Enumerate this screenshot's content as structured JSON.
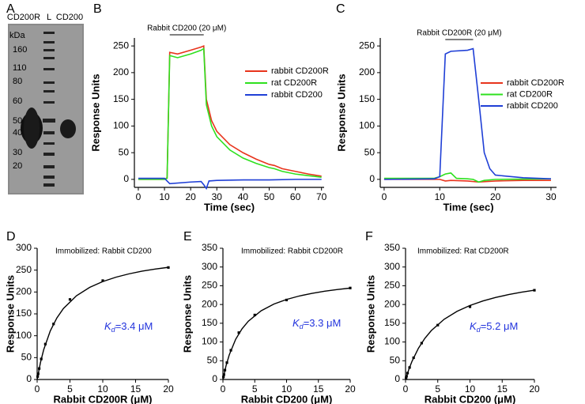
{
  "panels": [
    "A",
    "B",
    "C",
    "D",
    "E",
    "F"
  ],
  "gel": {
    "lanes": [
      "CD200R",
      "L",
      "CD200"
    ],
    "unit": "kDa",
    "markers": [
      160,
      110,
      80,
      60,
      50,
      40,
      30,
      20
    ]
  },
  "chart_data": [
    {
      "type": "line",
      "xlabel": "Time (sec)",
      "ylabel": "Response Units",
      "annotation": {
        "text": "Rabbit CD200 (20 μM)",
        "xrange": [
          12,
          25
        ]
      },
      "xlim": [
        -1.5,
        71
      ],
      "ylim": [
        -15,
        265
      ],
      "xticks": [
        0,
        10,
        20,
        30,
        40,
        50,
        60,
        70
      ],
      "yticks": [
        0,
        50,
        100,
        150,
        200,
        250
      ],
      "legend": "right",
      "series": [
        {
          "name": "rabbit CD200R",
          "color": "#e8341c",
          "x": [
            0,
            10,
            11,
            12,
            15,
            20,
            24,
            25,
            26,
            28,
            30,
            35,
            40,
            45,
            50,
            52,
            55,
            60,
            65,
            70
          ],
          "values": [
            0,
            0,
            3,
            238,
            235,
            242,
            248,
            250,
            150,
            110,
            90,
            65,
            50,
            38,
            28,
            26,
            20,
            15,
            10,
            6
          ]
        },
        {
          "name": "rat CD200R",
          "color": "#2ee01e",
          "x": [
            0,
            10,
            11,
            12,
            15,
            20,
            24,
            25,
            26,
            28,
            30,
            35,
            40,
            45,
            50,
            52,
            55,
            60,
            65,
            70
          ],
          "values": [
            0,
            0,
            2,
            232,
            228,
            235,
            242,
            245,
            140,
            100,
            80,
            55,
            40,
            30,
            22,
            20,
            15,
            10,
            7,
            4
          ]
        },
        {
          "name": "rabbit CD200",
          "color": "#1f3fd6",
          "x": [
            0,
            10,
            11,
            12,
            20,
            24,
            25,
            26,
            27,
            30,
            40,
            50,
            60,
            70
          ],
          "values": [
            2,
            2,
            -3,
            -8,
            -5,
            -4,
            -10,
            -17,
            -3,
            -2,
            -1,
            -1,
            0,
            0
          ]
        }
      ]
    },
    {
      "type": "line",
      "xlabel": "Time (sec)",
      "ylabel": "Response Units",
      "annotation": {
        "text": "Rabbit CD200R (20 μM)",
        "xrange": [
          11,
          16
        ]
      },
      "xlim": [
        -0.7,
        31
      ],
      "ylim": [
        -15,
        265
      ],
      "xticks": [
        0,
        10,
        20,
        30
      ],
      "yticks": [
        0,
        50,
        100,
        150,
        200,
        250
      ],
      "legend": "right",
      "series": [
        {
          "name": "rabbit CD200R",
          "color": "#e8341c",
          "x": [
            0,
            5,
            9,
            10,
            11,
            12,
            15,
            17,
            20,
            25,
            30
          ],
          "values": [
            0,
            0,
            0,
            0,
            -3,
            -2,
            -3,
            -5,
            -3,
            -2,
            -2
          ]
        },
        {
          "name": "rat CD200R",
          "color": "#2ee01e",
          "x": [
            0,
            9,
            10,
            11,
            12,
            13,
            15,
            16,
            17,
            18,
            20,
            30
          ],
          "values": [
            2,
            2,
            5,
            10,
            12,
            2,
            1,
            0,
            -5,
            -2,
            0,
            1
          ]
        },
        {
          "name": "rabbit CD200",
          "color": "#1f3fd6",
          "x": [
            0,
            9,
            10,
            11,
            12,
            15,
            16,
            17,
            18,
            19,
            20,
            25,
            30
          ],
          "values": [
            0,
            1,
            5,
            235,
            240,
            242,
            245,
            150,
            50,
            20,
            8,
            3,
            1
          ]
        }
      ]
    },
    {
      "type": "scatter",
      "xlabel": "Rabbit CD200R (μM)",
      "ylabel": "Response Units",
      "annotation": {
        "text": "Immobilized: Rabbit CD200"
      },
      "kd_label": {
        "symbol": "K",
        "subscript": "d",
        "text": "=3.4 μM",
        "color": "#2233dd"
      },
      "xlim": [
        0,
        20
      ],
      "ylim": [
        0,
        300
      ],
      "xticks": [
        0,
        5,
        10,
        15,
        20
      ],
      "yticks": [
        0,
        50,
        100,
        150,
        200,
        250,
        300
      ],
      "series": [
        {
          "style": "markers",
          "color": "#000000",
          "x": [
            0.078,
            0.156,
            0.3125,
            0.625,
            1.25,
            2.5,
            5,
            10,
            20
          ],
          "values": [
            6.7,
            13,
            25,
            47,
            81,
            127,
            183,
            226,
            256
          ]
        },
        {
          "style": "line",
          "color": "#000000",
          "x": [
            0,
            0.5,
            1,
            2,
            3,
            4,
            6,
            8,
            10,
            12,
            14,
            16,
            18,
            20
          ],
          "values": [
            0,
            38.5,
            68.2,
            111.1,
            140.6,
            162.2,
            191.5,
            210.5,
            223.9,
            233.8,
            241.5,
            247.6,
            252.5,
            256.4
          ]
        }
      ]
    },
    {
      "type": "scatter",
      "xlabel": "Rabbit CD200 (μM)",
      "ylabel": "Response Units",
      "annotation": {
        "text": "Immobilized: Rabbit CD200R"
      },
      "kd_label": {
        "symbol": "K",
        "subscript": "d",
        "text": "=3.3 μM",
        "color": "#2233dd"
      },
      "xlim": [
        0,
        20
      ],
      "ylim": [
        0,
        350
      ],
      "xticks": [
        0,
        5,
        10,
        15,
        20
      ],
      "yticks": [
        0,
        50,
        100,
        150,
        200,
        250,
        300,
        350
      ],
      "series": [
        {
          "style": "markers",
          "color": "#000000",
          "x": [
            0.078,
            0.156,
            0.3125,
            0.625,
            1.25,
            2.5,
            5,
            10,
            20
          ],
          "values": [
            6.6,
            13,
            25,
            45,
            78,
            125,
            172,
            212,
            244
          ]
        },
        {
          "style": "line",
          "color": "#000000",
          "x": [
            0,
            0.5,
            1,
            2,
            3,
            4,
            6,
            8,
            10,
            12,
            14,
            16,
            18,
            20
          ],
          "values": [
            0,
            37.4,
            66,
            107.2,
            135.2,
            155.6,
            183.2,
            201.1,
            213.5,
            222.7,
            229.8,
            235.4,
            240,
            243.8
          ]
        }
      ]
    },
    {
      "type": "scatter",
      "xlabel": "Rabbit CD200 (μM)",
      "ylabel": "Response Units",
      "annotation": {
        "text": "Immobilized: Rat CD200R"
      },
      "kd_label": {
        "symbol": "K",
        "subscript": "d",
        "text": "=5.2 μM",
        "color": "#2233dd"
      },
      "xlim": [
        0,
        20
      ],
      "ylim": [
        0,
        350
      ],
      "xticks": [
        0,
        5,
        10,
        15,
        20
      ],
      "yticks": [
        0,
        50,
        100,
        150,
        200,
        250,
        300,
        350
      ],
      "series": [
        {
          "style": "markers",
          "color": "#000000",
          "x": [
            0.078,
            0.156,
            0.3125,
            0.625,
            1.25,
            2.5,
            5,
            10,
            20
          ],
          "values": [
            4.4,
            8.7,
            17,
            32,
            58,
            97,
            145,
            194,
            238
          ]
        },
        {
          "style": "line",
          "color": "#000000",
          "x": [
            0,
            0.5,
            1,
            2,
            3,
            4,
            6,
            8,
            10,
            12,
            14,
            16,
            18,
            20
          ],
          "values": [
            0,
            26.3,
            48.4,
            83.3,
            109.8,
            130.4,
            160.7,
            181.8,
            197.4,
            209.3,
            218.8,
            226.4,
            232.8,
            238.1
          ]
        }
      ]
    }
  ]
}
